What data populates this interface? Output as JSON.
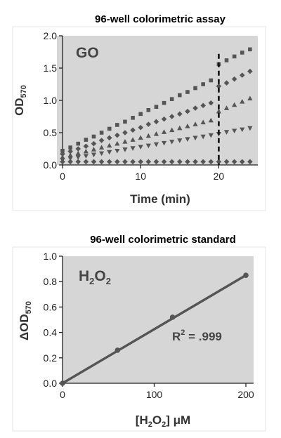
{
  "chart_data": [
    {
      "type": "scatter",
      "title": "96-well colorimetric assay",
      "annotation": "GO",
      "xlabel": "Time (min)",
      "ylabel": {
        "main": "OD",
        "sub": "570"
      },
      "xlim": [
        -1,
        25
      ],
      "ylim": [
        0,
        2.0
      ],
      "xticks": [
        0,
        10,
        20
      ],
      "yticks": [
        "0.0",
        "0.5",
        "1.0",
        "1.5",
        "2.0"
      ],
      "grid": false,
      "vline_x": 20,
      "colors": {
        "background": "#d6d6d6",
        "marker": "#555555",
        "dash": "#111111"
      },
      "x": [
        0,
        1,
        2,
        3,
        4,
        5,
        6,
        7,
        8,
        9,
        10,
        11,
        12,
        13,
        14,
        15,
        16,
        17,
        18,
        19,
        20,
        21,
        22,
        23,
        24
      ],
      "series": [
        {
          "marker": "square",
          "values": [
            0.22,
            0.27,
            0.33,
            0.39,
            0.44,
            0.5,
            0.56,
            0.62,
            0.67,
            0.73,
            0.79,
            0.85,
            0.9,
            0.96,
            1.02,
            1.08,
            1.13,
            1.19,
            1.25,
            1.31,
            1.56,
            1.62,
            1.68,
            1.74,
            1.79
          ]
        },
        {
          "marker": "diamond",
          "values": [
            0.17,
            0.21,
            0.25,
            0.29,
            0.33,
            0.38,
            0.42,
            0.46,
            0.5,
            0.54,
            0.58,
            0.63,
            0.67,
            0.71,
            0.75,
            0.79,
            0.83,
            0.88,
            0.92,
            0.96,
            1.22,
            1.27,
            1.33,
            1.39,
            1.45
          ]
        },
        {
          "marker": "triangle-up",
          "values": [
            0.12,
            0.15,
            0.18,
            0.21,
            0.24,
            0.27,
            0.3,
            0.33,
            0.36,
            0.39,
            0.42,
            0.45,
            0.48,
            0.51,
            0.54,
            0.57,
            0.6,
            0.63,
            0.66,
            0.69,
            0.83,
            0.88,
            0.93,
            0.98,
            1.03
          ]
        },
        {
          "marker": "triangle-down",
          "values": [
            0.08,
            0.1,
            0.12,
            0.14,
            0.16,
            0.18,
            0.2,
            0.22,
            0.24,
            0.26,
            0.28,
            0.3,
            0.32,
            0.34,
            0.36,
            0.38,
            0.4,
            0.42,
            0.44,
            0.46,
            0.48,
            0.51,
            0.53,
            0.55,
            0.57
          ]
        },
        {
          "marker": "diamond",
          "values": [
            0.05,
            0.05,
            0.05,
            0.05,
            0.05,
            0.05,
            0.05,
            0.05,
            0.05,
            0.05,
            0.05,
            0.05,
            0.05,
            0.05,
            0.05,
            0.05,
            0.05,
            0.05,
            0.05,
            0.05,
            0.05,
            0.05,
            0.05,
            0.05,
            0.05
          ]
        }
      ]
    },
    {
      "type": "scatter",
      "title": "96-well colorimetric standard",
      "annotation": {
        "main": "H",
        "sub1": "2",
        "mid": "O",
        "sub2": "2"
      },
      "r2": {
        "pre": "R",
        "sup": "2",
        "post": " = .999"
      },
      "xlabel": {
        "pre": "[H",
        "sub1": "2",
        "mid": "O",
        "sub2": "2",
        "post": "] μM"
      },
      "ylabel": {
        "main": "ΔOD",
        "sub": "570"
      },
      "xlim": [
        -2,
        213
      ],
      "ylim": [
        0,
        1.0
      ],
      "xticks": [
        0,
        100,
        200
      ],
      "yticks": [
        "0.0",
        "0.2",
        "0.4",
        "0.6",
        "0.8",
        "1.0"
      ],
      "grid": false,
      "colors": {
        "background": "#d6d6d6",
        "marker": "#555555",
        "line": "#555555"
      },
      "points": {
        "x": [
          0,
          60,
          120,
          200
        ],
        "y": [
          0.0,
          0.26,
          0.52,
          0.85
        ]
      },
      "fit": {
        "x": [
          0,
          200
        ],
        "y": [
          0.0,
          0.85
        ]
      }
    }
  ]
}
